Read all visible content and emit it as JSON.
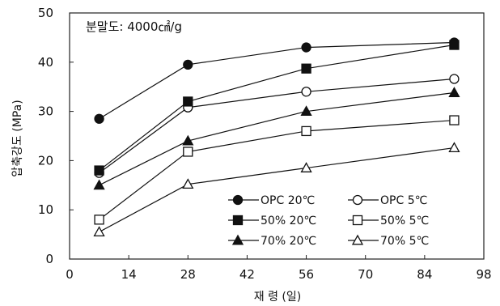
{
  "chart_data": {
    "type": "line",
    "annotation": "분말도: 4000㎠/g",
    "xlabel": "재 령 (일)",
    "ylabel": "압축강도 (MPa)",
    "xlim": [
      0,
      98
    ],
    "ylim": [
      0,
      50
    ],
    "xticks": [
      0,
      14,
      28,
      42,
      56,
      70,
      84,
      98
    ],
    "yticks": [
      0,
      10,
      20,
      30,
      40,
      50
    ],
    "grid": false,
    "legend_position": "bottom-right",
    "series": [
      {
        "name": "OPC 20℃",
        "marker": "circle",
        "filled": true,
        "x": [
          7,
          28,
          56,
          91
        ],
        "y": [
          28.5,
          39.5,
          43.0,
          44.0
        ]
      },
      {
        "name": "OPC 5℃",
        "marker": "circle",
        "filled": false,
        "x": [
          7,
          28,
          56,
          91
        ],
        "y": [
          17.5,
          30.8,
          34.0,
          36.6
        ]
      },
      {
        "name": "50% 20℃",
        "marker": "square",
        "filled": true,
        "x": [
          7,
          28,
          56,
          91
        ],
        "y": [
          18.0,
          32.0,
          38.7,
          43.5
        ]
      },
      {
        "name": "50% 5℃",
        "marker": "square",
        "filled": false,
        "x": [
          7,
          28,
          56,
          91
        ],
        "y": [
          8.0,
          21.8,
          26.0,
          28.2
        ]
      },
      {
        "name": "70% 20℃",
        "marker": "triangle",
        "filled": true,
        "x": [
          7,
          28,
          56,
          91
        ],
        "y": [
          15.0,
          24.0,
          30.0,
          33.8
        ]
      },
      {
        "name": "70% 5℃",
        "marker": "triangle",
        "filled": false,
        "x": [
          7,
          28,
          56,
          91
        ],
        "y": [
          5.5,
          15.2,
          18.5,
          22.6
        ]
      }
    ]
  }
}
